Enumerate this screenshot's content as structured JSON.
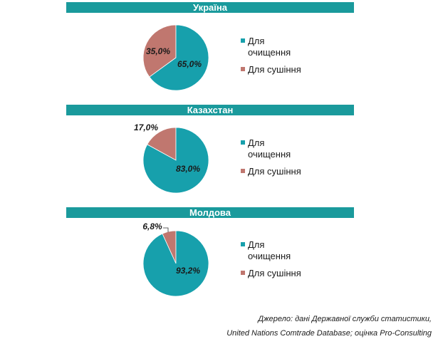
{
  "colors": {
    "cleaning": "#17a0ac",
    "drying": "#c0776f",
    "band": "#1a9a9c"
  },
  "legend": {
    "cleaning_label": "Для очищення",
    "drying_label": "Для сушіння"
  },
  "chart_data": [
    {
      "type": "pie",
      "title": "Україна",
      "categories": [
        "Для очищення",
        "Для сушіння"
      ],
      "values": [
        65.0,
        35.0
      ],
      "labels": [
        "65,0%",
        "35,0%"
      ]
    },
    {
      "type": "pie",
      "title": "Казахстан",
      "categories": [
        "Для очищення",
        "Для сушіння"
      ],
      "values": [
        83.0,
        17.0
      ],
      "labels": [
        "83,0%",
        "17,0%"
      ]
    },
    {
      "type": "pie",
      "title": "Молдова",
      "categories": [
        "Для очищення",
        "Для сушіння"
      ],
      "values": [
        93.2,
        6.8
      ],
      "labels": [
        "93,2%",
        "6,8%"
      ]
    }
  ],
  "source": {
    "line1": "Джерело: дані Державної служби статистики,",
    "line2": "United Nations Comtrade Database; оцінка Pro-Consulting"
  }
}
